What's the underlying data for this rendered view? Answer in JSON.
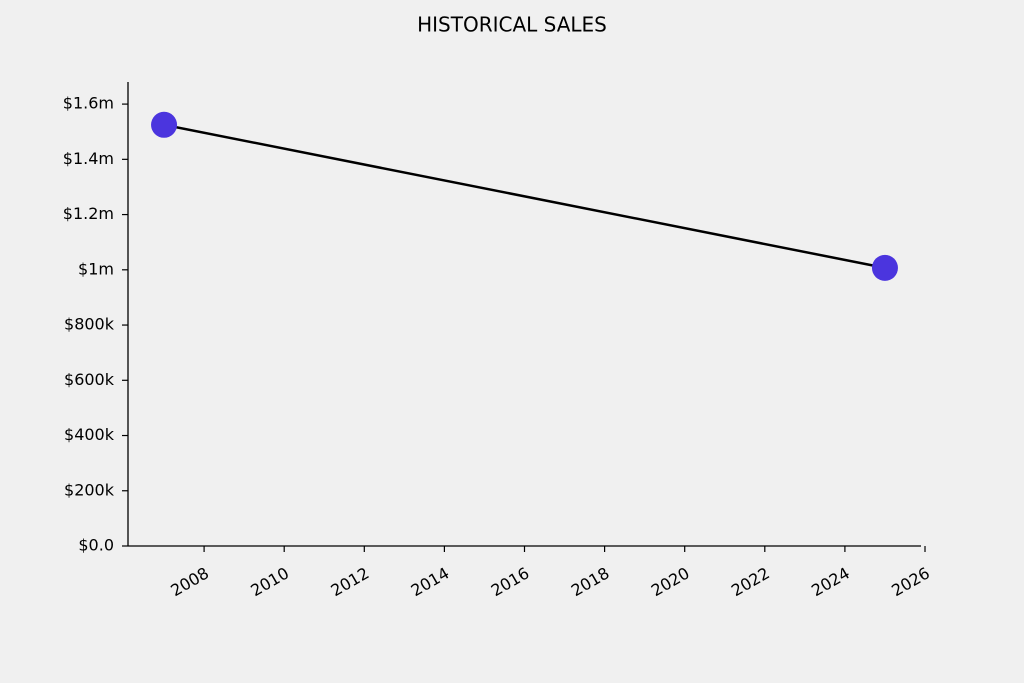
{
  "chart_data": {
    "type": "line",
    "title": "HISTORICAL SALES",
    "x": [
      2007,
      2025
    ],
    "series": [
      {
        "values": [
          1525000,
          1007000
        ],
        "color": "#4b35de"
      }
    ],
    "line_color": "#000000",
    "xlim": [
      2006.1,
      2025.9
    ],
    "xticks": [
      2008,
      2010,
      2012,
      2014,
      2016,
      2018,
      2020,
      2022,
      2024,
      2026
    ],
    "ylim": [
      0,
      1680000
    ],
    "yticks": [
      {
        "value": 0,
        "label": "$0.0"
      },
      {
        "value": 200000,
        "label": "$200k"
      },
      {
        "value": 400000,
        "label": "$400k"
      },
      {
        "value": 600000,
        "label": "$600k"
      },
      {
        "value": 800000,
        "label": "$800k"
      },
      {
        "value": 1000000,
        "label": "$1m"
      },
      {
        "value": 1200000,
        "label": "$1.2m"
      },
      {
        "value": 1400000,
        "label": "$1.4m"
      },
      {
        "value": 1600000,
        "label": "$1.6m"
      }
    ],
    "grid": false
  }
}
